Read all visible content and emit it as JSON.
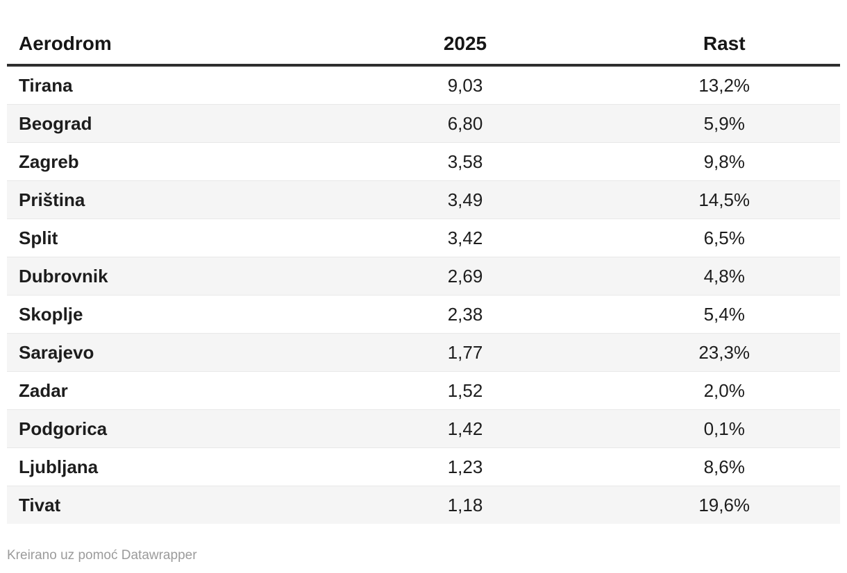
{
  "chart_data": {
    "type": "table",
    "columns": [
      "Aerodrom",
      "2025",
      "Rast"
    ],
    "column_align": [
      "left",
      "center",
      "center"
    ],
    "rows": [
      {
        "name": "Tirana",
        "value": "9,03",
        "growth": "13,2%"
      },
      {
        "name": "Beograd",
        "value": "6,80",
        "growth": "5,9%"
      },
      {
        "name": "Zagreb",
        "value": "3,58",
        "growth": "9,8%"
      },
      {
        "name": "Priština",
        "value": "3,49",
        "growth": "14,5%"
      },
      {
        "name": "Split",
        "value": "3,42",
        "growth": "6,5%"
      },
      {
        "name": "Dubrovnik",
        "value": "2,69",
        "growth": "4,8%"
      },
      {
        "name": "Skoplje",
        "value": "2,38",
        "growth": "5,4%"
      },
      {
        "name": "Sarajevo",
        "value": "1,77",
        "growth": "23,3%"
      },
      {
        "name": "Zadar",
        "value": "1,52",
        "growth": "2,0%"
      },
      {
        "name": "Podgorica",
        "value": "1,42",
        "growth": "0,1%"
      },
      {
        "name": "Ljubljana",
        "value": "1,23",
        "growth": "8,6%"
      },
      {
        "name": "Tivat",
        "value": "1,18",
        "growth": "19,6%"
      }
    ],
    "values_numeric": [
      9.03,
      6.8,
      3.58,
      3.49,
      3.42,
      2.69,
      2.38,
      1.77,
      1.52,
      1.42,
      1.23,
      1.18
    ],
    "growth_numeric_pct": [
      13.2,
      5.9,
      9.8,
      14.5,
      6.5,
      4.8,
      5.4,
      23.3,
      2.0,
      0.1,
      8.6,
      19.6
    ],
    "row_striping": "even-rows-shaded"
  },
  "footer": {
    "credit": "Kreirano uz pomoć Datawrapper"
  },
  "colors": {
    "text": "#1d1d1d",
    "header_rule": "#2e2e2e",
    "row_stripe": "#f5f5f5",
    "row_border": "#e8e8e8",
    "credit_text": "#9b9b9b",
    "background": "#ffffff"
  }
}
